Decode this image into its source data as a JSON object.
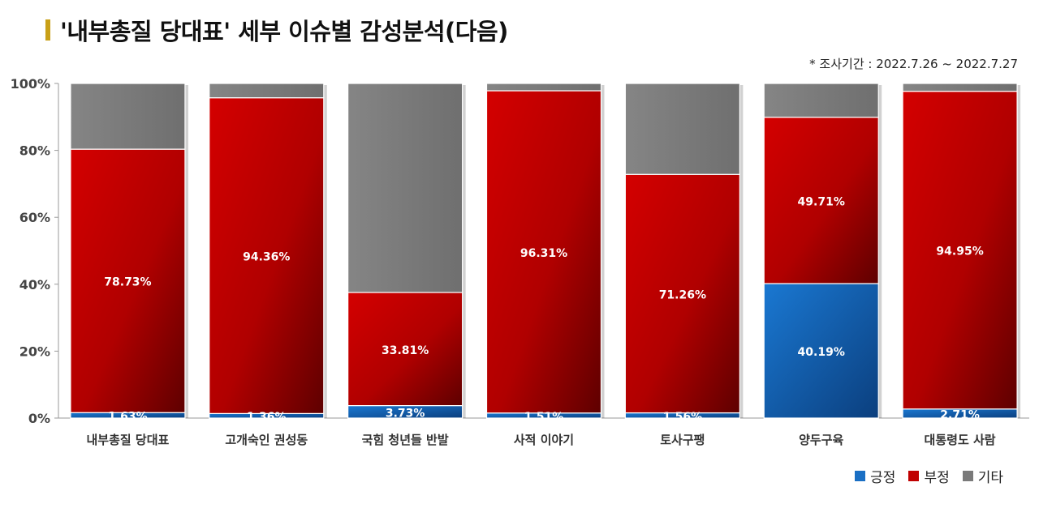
{
  "title": "'내부총질 당대표' 세부 이슈별 감성분석(다음)",
  "note": "* 조사기간 : 2022.7.26 ~ 2022.7.27",
  "colors": {
    "positive": "#1a6fc4",
    "negative": "#c00000",
    "other": "#7a7a7a",
    "accent": "#c9a017"
  },
  "chart_data": {
    "type": "bar",
    "stacked": true,
    "categories": [
      "내부총질 당대표",
      "고개숙인 권성동",
      "국힘 청년들 반발",
      "사적 이야기",
      "토사구팽",
      "양두구육",
      "대통령도 사람"
    ],
    "series": [
      {
        "name": "긍정",
        "values": [
          1.63,
          1.36,
          3.73,
          1.51,
          1.56,
          40.19,
          2.71
        ],
        "labels": [
          "1.63%",
          "1.36%",
          "3.73%",
          "1.51%",
          "1.56%",
          "40.19%",
          "2.71%"
        ]
      },
      {
        "name": "부정",
        "values": [
          78.73,
          94.36,
          33.81,
          96.31,
          71.26,
          49.71,
          94.95
        ],
        "labels": [
          "78.73%",
          "94.36%",
          "33.81%",
          "96.31%",
          "71.26%",
          "49.71%",
          "94.95%"
        ]
      },
      {
        "name": "기타",
        "values": [
          19.64,
          4.28,
          62.46,
          2.18,
          27.18,
          10.1,
          2.34
        ]
      }
    ],
    "yticks": [
      "0%",
      "20%",
      "40%",
      "60%",
      "80%",
      "100%"
    ],
    "ylim": [
      0,
      100
    ],
    "grid": false,
    "legend_position": "bottom-right"
  }
}
